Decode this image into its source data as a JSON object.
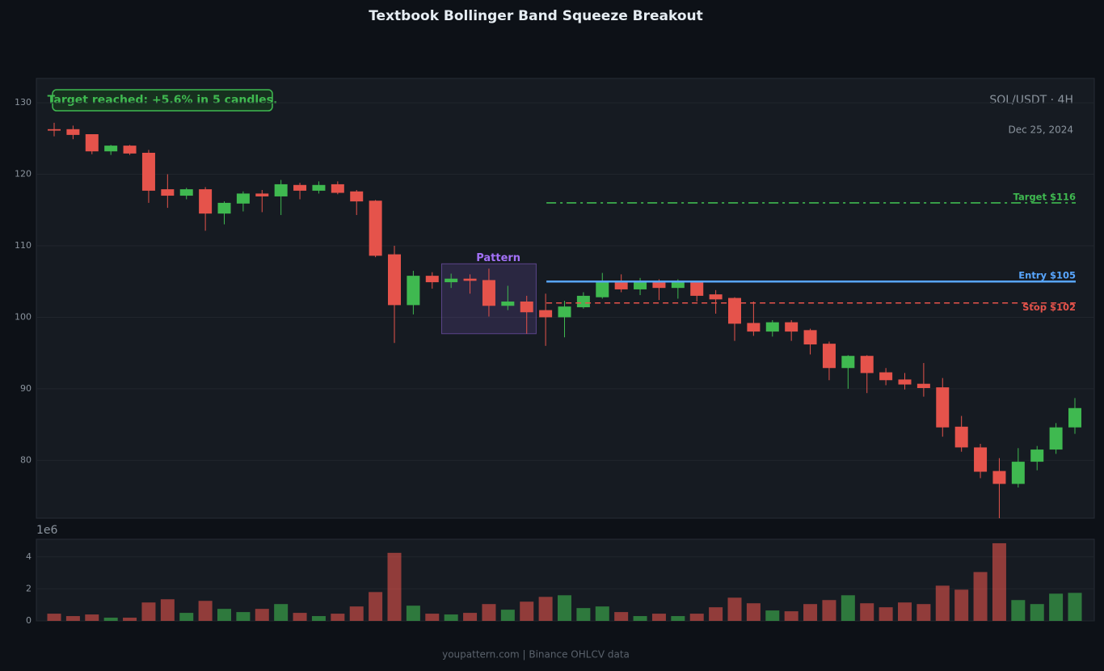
{
  "chart_data": {
    "type": "candlestick",
    "title": "Textbook Bollinger Band Squeeze Breakout",
    "annotation": "Target reached: +5.6% in 5 candles.",
    "symbol": "SOL/USDT · 4H",
    "date": "Dec 25, 2024",
    "source": "youpattern.com | Binance OHLCV data",
    "up_color": "#3fb950",
    "down_color": "#e5534b",
    "open": [
      126.3,
      126.3,
      125.6,
      123.2,
      124.0,
      123.0,
      117.9,
      117.0,
      117.9,
      114.5,
      115.9,
      117.3,
      116.9,
      118.5,
      117.7,
      118.6,
      117.6,
      116.3,
      108.8,
      101.7,
      105.8,
      104.9,
      105.4,
      105.2,
      101.6,
      102.2,
      101.0,
      100.0,
      101.4,
      102.8,
      105.0,
      103.9,
      104.9,
      104.1,
      104.9,
      103.2,
      102.7,
      99.2,
      98.0,
      99.3,
      98.2,
      96.3,
      92.9,
      94.6,
      92.3,
      91.3,
      90.7,
      90.2,
      84.7,
      81.8,
      78.5,
      76.7,
      79.8,
      81.5,
      84.6
    ],
    "high": [
      127.2,
      126.8,
      125.6,
      124.1,
      124.1,
      123.4,
      120.0,
      118.1,
      118.2,
      116.2,
      117.6,
      117.8,
      119.2,
      118.8,
      119.0,
      119.0,
      117.8,
      116.4,
      110.0,
      106.5,
      106.3,
      106.1,
      106.0,
      106.8,
      104.4,
      103.0,
      103.3,
      102.3,
      103.5,
      106.2,
      106.0,
      105.5,
      105.3,
      105.3,
      105.0,
      103.8,
      102.8,
      102.2,
      99.6,
      99.6,
      98.4,
      96.6,
      94.7,
      94.7,
      92.9,
      92.2,
      93.6,
      91.5,
      86.2,
      82.3,
      80.3,
      81.7,
      82.0,
      85.2,
      88.7
    ],
    "low": [
      125.3,
      124.9,
      122.8,
      122.7,
      122.7,
      116.0,
      115.3,
      116.5,
      112.1,
      113.0,
      114.8,
      114.7,
      114.3,
      116.5,
      117.3,
      117.2,
      114.3,
      108.4,
      96.4,
      100.4,
      104.0,
      104.1,
      103.3,
      100.1,
      101.0,
      97.7,
      96.0,
      97.2,
      101.2,
      102.6,
      103.5,
      103.1,
      102.4,
      102.6,
      102.2,
      100.5,
      96.7,
      97.4,
      97.3,
      96.7,
      94.8,
      91.2,
      90.0,
      89.4,
      90.5,
      89.9,
      88.9,
      83.3,
      81.2,
      77.5,
      71.9,
      76.2,
      78.6,
      80.9,
      83.7
    ],
    "close": [
      126.1,
      125.5,
      123.2,
      124.0,
      122.9,
      117.7,
      117.0,
      117.9,
      114.5,
      116.0,
      117.3,
      116.9,
      118.6,
      117.7,
      118.5,
      117.4,
      116.2,
      108.6,
      101.7,
      105.8,
      104.9,
      105.4,
      105.1,
      101.6,
      102.2,
      100.7,
      100.0,
      101.5,
      103.0,
      105.0,
      103.9,
      105.0,
      104.1,
      105.0,
      103.0,
      102.5,
      99.1,
      98.0,
      99.3,
      98.0,
      96.2,
      92.9,
      94.6,
      92.2,
      91.2,
      90.6,
      90.1,
      84.6,
      81.8,
      78.4,
      76.7,
      79.8,
      81.5,
      84.6,
      87.3
    ],
    "ylim": [
      71.9,
      133.4
    ],
    "yticks": [
      80,
      90,
      100,
      110,
      120,
      130
    ],
    "pattern_label": "Pattern",
    "levels": [
      {
        "label": "Target $116",
        "value": 116,
        "color": "#3fb950",
        "style": "dashdot"
      },
      {
        "label": "Entry $105",
        "value": 105,
        "color": "#58a6ff",
        "style": "solid"
      },
      {
        "label": "Stop $102",
        "value": 102,
        "color": "#e5534b",
        "style": "dashed"
      }
    ],
    "volume": {
      "values": [
        0.45,
        0.3,
        0.4,
        0.2,
        0.2,
        1.15,
        1.35,
        0.5,
        1.25,
        0.75,
        0.55,
        0.75,
        1.05,
        0.5,
        0.3,
        0.45,
        0.9,
        1.8,
        4.25,
        0.95,
        0.45,
        0.4,
        0.5,
        1.05,
        0.7,
        1.2,
        1.5,
        1.6,
        0.8,
        0.9,
        0.55,
        0.3,
        0.45,
        0.3,
        0.45,
        0.85,
        1.45,
        1.1,
        0.65,
        0.6,
        1.05,
        1.3,
        1.6,
        1.1,
        0.85,
        1.15,
        1.05,
        2.2,
        1.95,
        3.05,
        4.85,
        1.3,
        1.05,
        1.7,
        1.75
      ],
      "ylim": [
        0,
        5.1
      ],
      "yticks": [
        0,
        2,
        4
      ],
      "scale_label": "1e6"
    }
  }
}
